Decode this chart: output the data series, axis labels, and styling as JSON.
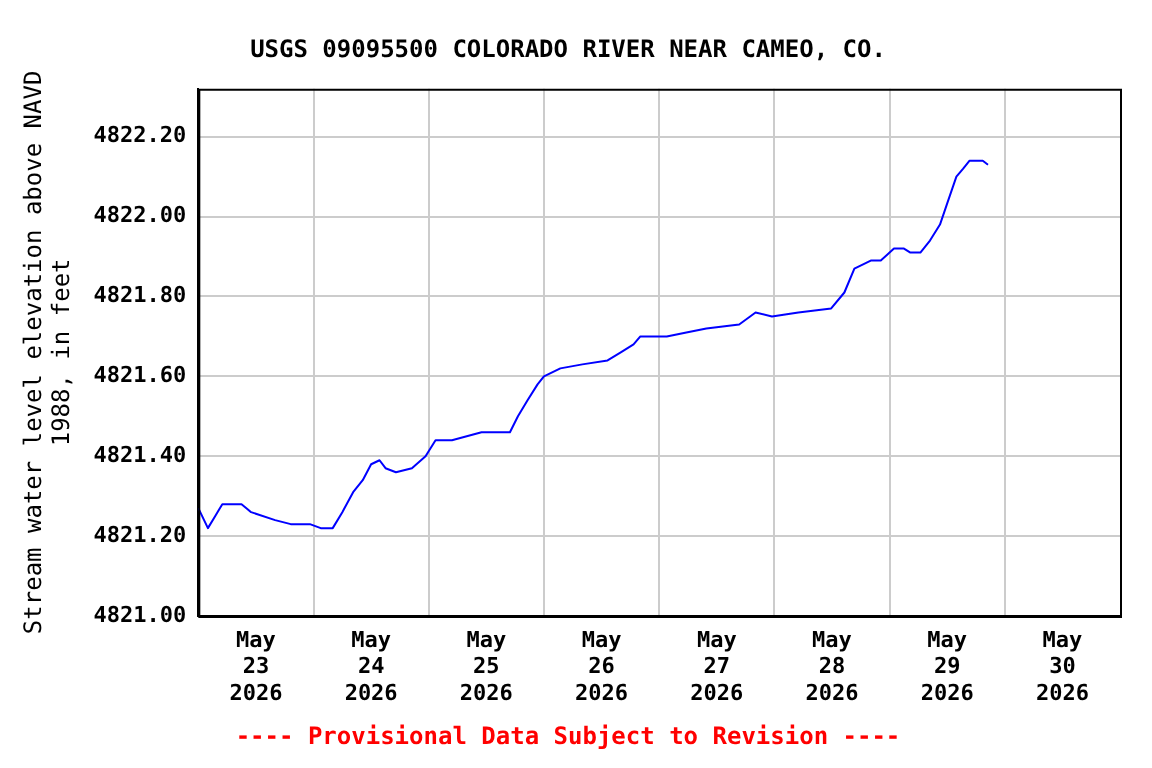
{
  "chart_data": {
    "type": "line",
    "title": "USGS 09095500 COLORADO RIVER NEAR CAMEO, CO.",
    "ylabel": "Stream water level elevation above NAVD 1988, in feet",
    "annotations": [
      "---- Provisional Data Subject to Revision ----"
    ],
    "x": [
      "2026-05-23T00:00",
      "2026-05-23T02:00",
      "2026-05-23T03:30",
      "2026-05-23T05:00",
      "2026-05-23T09:00",
      "2026-05-23T11:00",
      "2026-05-23T16:00",
      "2026-05-23T19:15",
      "2026-05-23T23:15",
      "2026-05-24T01:30",
      "2026-05-24T04:00",
      "2026-05-24T06:00",
      "2026-05-24T08:15",
      "2026-05-24T10:15",
      "2026-05-24T12:00",
      "2026-05-24T13:45",
      "2026-05-24T15:00",
      "2026-05-24T17:10",
      "2026-05-24T20:30",
      "2026-05-24T23:20",
      "2026-05-25T01:25",
      "2026-05-25T04:50",
      "2026-05-25T11:00",
      "2026-05-25T16:55",
      "2026-05-25T18:35",
      "2026-05-25T20:35",
      "2026-05-25T22:40",
      "2026-05-26T00:00",
      "2026-05-26T03:25",
      "2026-05-26T08:00",
      "2026-05-26T13:15",
      "2026-05-26T16:00",
      "2026-05-26T18:40",
      "2026-05-26T20:05",
      "2026-05-27T01:35",
      "2026-05-27T05:40",
      "2026-05-27T09:50",
      "2026-05-27T16:40",
      "2026-05-27T20:05",
      "2026-05-27T23:30",
      "2026-05-28T05:00",
      "2026-05-28T11:50",
      "2026-05-28T14:35",
      "2026-05-28T16:40",
      "2026-05-28T20:05",
      "2026-05-28T22:10",
      "2026-05-29T00:55",
      "2026-05-29T03:00",
      "2026-05-29T04:20",
      "2026-05-29T06:25",
      "2026-05-29T08:25",
      "2026-05-29T10:30",
      "2026-05-29T11:55",
      "2026-05-29T13:55",
      "2026-05-29T15:20",
      "2026-05-29T16:40",
      "2026-05-29T19:25",
      "2026-05-29T20:30"
    ],
    "series": [
      {
        "color": "#0000ff",
        "values": [
          4821.27,
          4821.22,
          4821.25,
          4821.28,
          4821.28,
          4821.26,
          4821.24,
          4821.23,
          4821.23,
          4821.22,
          4821.22,
          4821.26,
          4821.31,
          4821.34,
          4821.38,
          4821.39,
          4821.37,
          4821.36,
          4821.37,
          4821.4,
          4821.44,
          4821.44,
          4821.46,
          4821.46,
          4821.5,
          4821.54,
          4821.58,
          4821.6,
          4821.62,
          4821.63,
          4821.64,
          4821.66,
          4821.68,
          4821.7,
          4821.7,
          4821.71,
          4821.72,
          4821.73,
          4821.76,
          4821.75,
          4821.76,
          4821.77,
          4821.81,
          4821.87,
          4821.89,
          4821.89,
          4821.92,
          4821.92,
          4821.91,
          4821.91,
          4821.94,
          4821.98,
          4822.03,
          4822.1,
          4822.12,
          4822.14,
          4822.14,
          4822.13
        ]
      }
    ],
    "xlim": [
      "2026-05-23T00:00",
      "2026-05-31T00:00"
    ],
    "xticks": [
      {
        "value": "2026-05-23T12:00",
        "label": "May\n23\n2026"
      },
      {
        "value": "2026-05-24T00:00",
        "label": null
      },
      {
        "value": "2026-05-24T12:00",
        "label": "May\n24\n2026"
      },
      {
        "value": "2026-05-25T00:00",
        "label": null
      },
      {
        "value": "2026-05-25T12:00",
        "label": "May\n25\n2026"
      },
      {
        "value": "2026-05-26T00:00",
        "label": null
      },
      {
        "value": "2026-05-26T12:00",
        "label": "May\n26\n2026"
      },
      {
        "value": "2026-05-27T00:00",
        "label": null
      },
      {
        "value": "2026-05-27T12:00",
        "label": "May\n27\n2026"
      },
      {
        "value": "2026-05-28T00:00",
        "label": null
      },
      {
        "value": "2026-05-28T12:00",
        "label": "May\n28\n2026"
      },
      {
        "value": "2026-05-29T00:00",
        "label": null
      },
      {
        "value": "2026-05-29T12:00",
        "label": "May\n29\n2026"
      },
      {
        "value": "2026-05-30T00:00",
        "label": null
      },
      {
        "value": "2026-05-30T12:00",
        "label": "May\n30\n2026"
      }
    ],
    "ylim": [
      4821.0,
      4822.32
    ],
    "yticks": [
      {
        "value": 4821.0,
        "label": "4821.00"
      },
      {
        "value": 4821.2,
        "label": "4821.20"
      },
      {
        "value": 4821.4,
        "label": "4821.40"
      },
      {
        "value": 4821.6,
        "label": "4821.60"
      },
      {
        "value": 4821.8,
        "label": "4821.80"
      },
      {
        "value": 4822.0,
        "label": "4822.00"
      },
      {
        "value": 4822.2,
        "label": "4822.20"
      }
    ],
    "grid": true,
    "legend": false,
    "marker": "none",
    "line_style": "solid"
  }
}
